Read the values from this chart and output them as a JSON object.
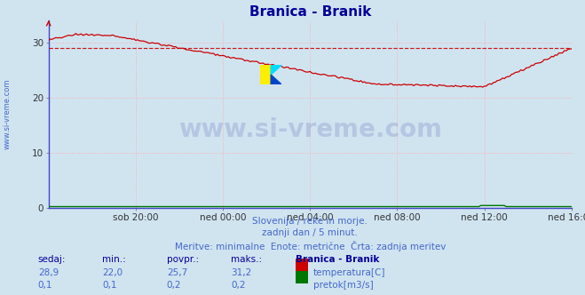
{
  "title": "Branica - Branik",
  "title_color": "#000099",
  "bg_color": "#d0e4f0",
  "plot_bg_color": "#d0e4f0",
  "grid_color": "#ffaaaa",
  "grid_linestyle": ":",
  "xlim": [
    0,
    288
  ],
  "ylim": [
    0,
    34
  ],
  "yticks": [
    0,
    10,
    20,
    30
  ],
  "xtick_labels": [
    "sob 20:00",
    "ned 00:00",
    "ned 04:00",
    "ned 08:00",
    "ned 12:00",
    "ned 16:00"
  ],
  "xtick_positions": [
    48,
    96,
    144,
    192,
    240,
    288
  ],
  "avg_line_value": 29.0,
  "avg_line_color": "#cc0000",
  "avg_line_style": "--",
  "temp_line_color": "#cc0000",
  "flow_line_color": "#007700",
  "watermark_text": "www.si-vreme.com",
  "watermark_color": "#000088",
  "watermark_alpha": 0.13,
  "subtitle1": "Slovenija / reke in morje.",
  "subtitle2": "zadnji dan / 5 minut.",
  "subtitle3": "Meritve: minimalne  Enote: metrične  Črta: zadnja meritev",
  "subtitle_color": "#4466cc",
  "left_label": "www.si-vreme.com",
  "left_label_color": "#4466cc",
  "table_headers": [
    "sedaj:",
    "min.:",
    "povpr.:",
    "maks.:",
    "Branica - Branik"
  ],
  "table_row1_vals": [
    "28,9",
    "22,0",
    "25,7",
    "31,2"
  ],
  "table_row1_label": "temperatura[C]",
  "table_row2_vals": [
    "0,1",
    "0,1",
    "0,2",
    "0,2"
  ],
  "table_row2_label": "pretok[m3/s]",
  "table_val_color": "#4466cc",
  "table_hdr_color": "#000099",
  "legend_temp_color": "#cc0000",
  "legend_flow_color": "#007700",
  "spine_color": "#4444cc",
  "tick_color": "#333333",
  "arrow_color": "#cc0000"
}
